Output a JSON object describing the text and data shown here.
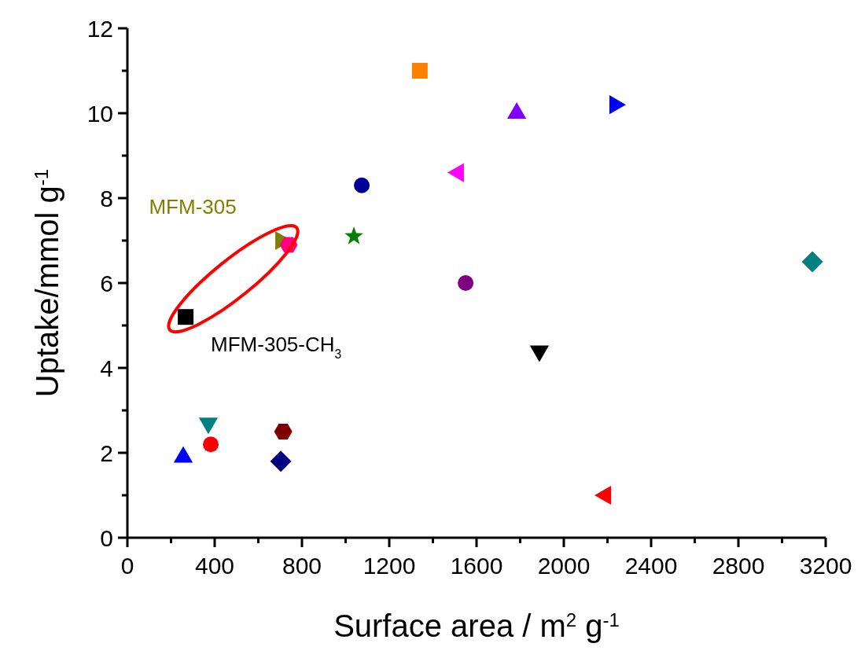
{
  "chart_data": {
    "type": "scatter",
    "xlabel": "Surface area / m$^{2}$ g$^{-1}$",
    "ylabel": "Uptake/mmol g$^{-1}$",
    "xlim": [
      0,
      3200
    ],
    "ylim": [
      0,
      12
    ],
    "xticks": [
      0,
      {
        "value": 200,
        "label": null
      },
      400,
      {
        "value": 600,
        "label": null
      },
      800,
      {
        "value": 1000,
        "label": null
      },
      1200,
      {
        "value": 1400,
        "label": null
      },
      1600,
      {
        "value": 1800,
        "label": null
      },
      2000,
      {
        "value": 2200,
        "label": null
      },
      2400,
      {
        "value": 2600,
        "label": null
      },
      2800,
      {
        "value": 3000,
        "label": null
      },
      3200
    ],
    "yticks": [
      0,
      {
        "value": 1,
        "label": null
      },
      2,
      {
        "value": 3,
        "label": null
      },
      4,
      {
        "value": 5,
        "label": null
      },
      6,
      {
        "value": 7,
        "label": null
      },
      8,
      {
        "value": 9,
        "label": null
      },
      10,
      {
        "value": 11,
        "label": null
      },
      12
    ],
    "grid": false,
    "legend": false,
    "annotations": [
      {
        "text": "MFM-305",
        "x": 703,
        "y": 7.0
      },
      {
        "text": "MFM-305-CH$_{3}$",
        "x": 267,
        "y": 5.2
      }
    ],
    "series": [
      {
        "color": "#0000ff",
        "marker": "triangle",
        "x": [
          256
        ],
        "values": [
          1.9
        ]
      },
      {
        "color": "#ff0000",
        "marker": "circle",
        "x": [
          382
        ],
        "values": [
          2.2
        ]
      },
      {
        "color": "#008080",
        "marker": "triangle-down",
        "x": [
          371
        ],
        "values": [
          2.7
        ]
      },
      {
        "color": "#000000",
        "marker": "square",
        "x": [
          267
        ],
        "values": [
          5.2
        ]
      },
      {
        "color": "#808000",
        "marker": "triangle-right",
        "x": [
          703
        ],
        "values": [
          7.0
        ]
      },
      {
        "color": "#ff0080",
        "x": [
          739
        ],
        "values": [
          6.9
        ]
      },
      {
        "color": "#800000",
        "x": [
          714
        ],
        "values": [
          2.5
        ]
      },
      {
        "color": "#000080",
        "marker": "diamond",
        "x": [
          703
        ],
        "values": [
          1.8
        ]
      },
      {
        "color": "#008000",
        "marker": "star",
        "x": [
          1038
        ],
        "values": [
          7.1
        ]
      },
      {
        "color": "#000099",
        "marker": "circle",
        "x": [
          1074
        ],
        "values": [
          8.3
        ]
      },
      {
        "color": "#ff8000",
        "marker": "square",
        "x": [
          1340
        ],
        "values": [
          11.0
        ]
      },
      {
        "color": "#ff00ff",
        "marker": "triangle-left",
        "x": [
          1517
        ],
        "values": [
          8.6
        ]
      },
      {
        "color": "#800080",
        "marker": "circle",
        "x": [
          1550
        ],
        "values": [
          6.0
        ]
      },
      {
        "color": "#8000ff",
        "marker": "triangle",
        "x": [
          1784
        ],
        "values": [
          10.0
        ]
      },
      {
        "color": "#0000ff",
        "marker": "triangle-right",
        "x": [
          2234
        ],
        "values": [
          10.2
        ]
      },
      {
        "color": "#000000",
        "marker": "triangle-down",
        "x": [
          1888
        ],
        "values": [
          4.4
        ]
      },
      {
        "color": "#ff0000",
        "marker": "triangle-left",
        "x": [
          2191
        ],
        "values": [
          1.0
        ]
      },
      {
        "color": "#008080",
        "marker": "diamond",
        "x": [
          3139
        ],
        "values": [
          6.5
        ]
      }
    ]
  }
}
